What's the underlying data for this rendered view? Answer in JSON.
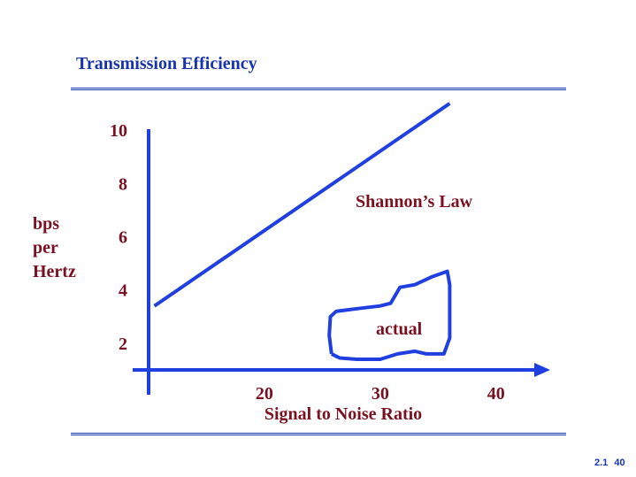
{
  "slide": {
    "title": "Transmission Efficiency",
    "footer": "2.1 40"
  },
  "colors": {
    "accent": "#1733b0",
    "line": "#1f3fe0",
    "label": "#7a1020"
  },
  "chart_data": {
    "type": "line",
    "title": "Transmission Efficiency",
    "xlabel": "Signal to Noise Ratio",
    "ylabel_lines": [
      "bps",
      "per",
      "Hertz"
    ],
    "x_ticks": [
      20,
      30,
      40
    ],
    "y_ticks": [
      2,
      4,
      6,
      8,
      10
    ],
    "xlim": [
      10,
      43
    ],
    "ylim": [
      1,
      10.5
    ],
    "grid": false,
    "series": [
      {
        "name": "Shannon’s Law",
        "x": [
          10.5,
          36
        ],
        "y": [
          3.4,
          11
        ]
      },
      {
        "name": "actual",
        "shape": "freehand-region",
        "x": [
          25.8,
          25.6,
          25.7,
          26.2,
          28,
          30,
          30.9,
          31.7,
          33,
          34.5,
          35.8,
          36,
          36,
          35.5,
          34,
          33,
          31.5,
          30,
          28,
          26.5,
          25.8
        ],
        "y": [
          1.6,
          2.3,
          3,
          3.2,
          3.3,
          3.4,
          3.5,
          4.1,
          4.2,
          4.5,
          4.7,
          4.2,
          2.2,
          1.6,
          1.6,
          1.7,
          1.6,
          1.4,
          1.4,
          1.45,
          1.6
        ]
      }
    ],
    "annotations": [
      "Shannon’s Law",
      "actual"
    ]
  }
}
